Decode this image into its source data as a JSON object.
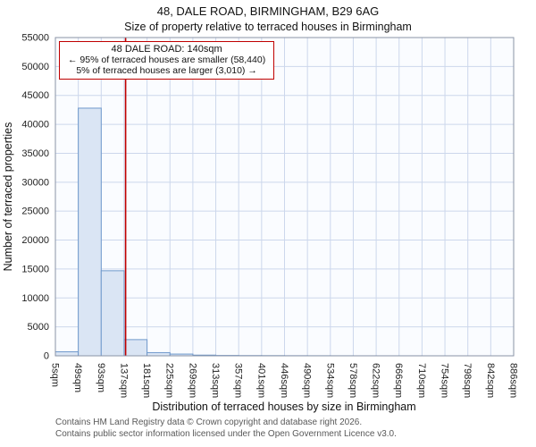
{
  "header": {
    "title": "48, DALE ROAD, BIRMINGHAM, B29 6AG",
    "subtitle": "Size of property relative to terraced houses in Birmingham"
  },
  "annotation": {
    "line1": "48 DALE ROAD: 140sqm",
    "line2": "← 95% of terraced houses are smaller (58,440)",
    "line3": "5% of terraced houses are larger (3,010) →"
  },
  "footer": {
    "line1": "Contains HM Land Registry data © Crown copyright and database right 2026.",
    "line2": "Contains public sector information licensed under the Open Government Licence v3.0."
  },
  "chart_data": {
    "type": "bar",
    "title": "Size of property relative to terraced houses in Birmingham",
    "xlabel": "Distribution of terraced houses by size in Birmingham",
    "ylabel": "Number of terraced properties",
    "categories": [
      "5sqm",
      "49sqm",
      "93sqm",
      "137sqm",
      "181sqm",
      "225sqm",
      "269sqm",
      "313sqm",
      "357sqm",
      "401sqm",
      "446sqm",
      "490sqm",
      "534sqm",
      "578sqm",
      "622sqm",
      "666sqm",
      "710sqm",
      "754sqm",
      "798sqm",
      "842sqm",
      "886sqm"
    ],
    "bin_edges": [
      5,
      49,
      93,
      137,
      181,
      225,
      269,
      313,
      357,
      401,
      446,
      490,
      534,
      578,
      622,
      666,
      710,
      754,
      798,
      842,
      886
    ],
    "values": [
      700,
      42800,
      14700,
      2800,
      550,
      300,
      120,
      60,
      40,
      30,
      20,
      15,
      10,
      5,
      5,
      5,
      3,
      2,
      1,
      0
    ],
    "ylim": [
      0,
      55000
    ],
    "ytick_step": 5000,
    "marker_value": 140,
    "legend": "none",
    "grid": "on",
    "colors": {
      "bar_fill": "#dae5f4",
      "bar_stroke": "#6f98cb",
      "marker": "#c00000",
      "grid": "#ccd7ec",
      "plot_bg": "#fafcff",
      "frame": "#8a93a6"
    }
  }
}
